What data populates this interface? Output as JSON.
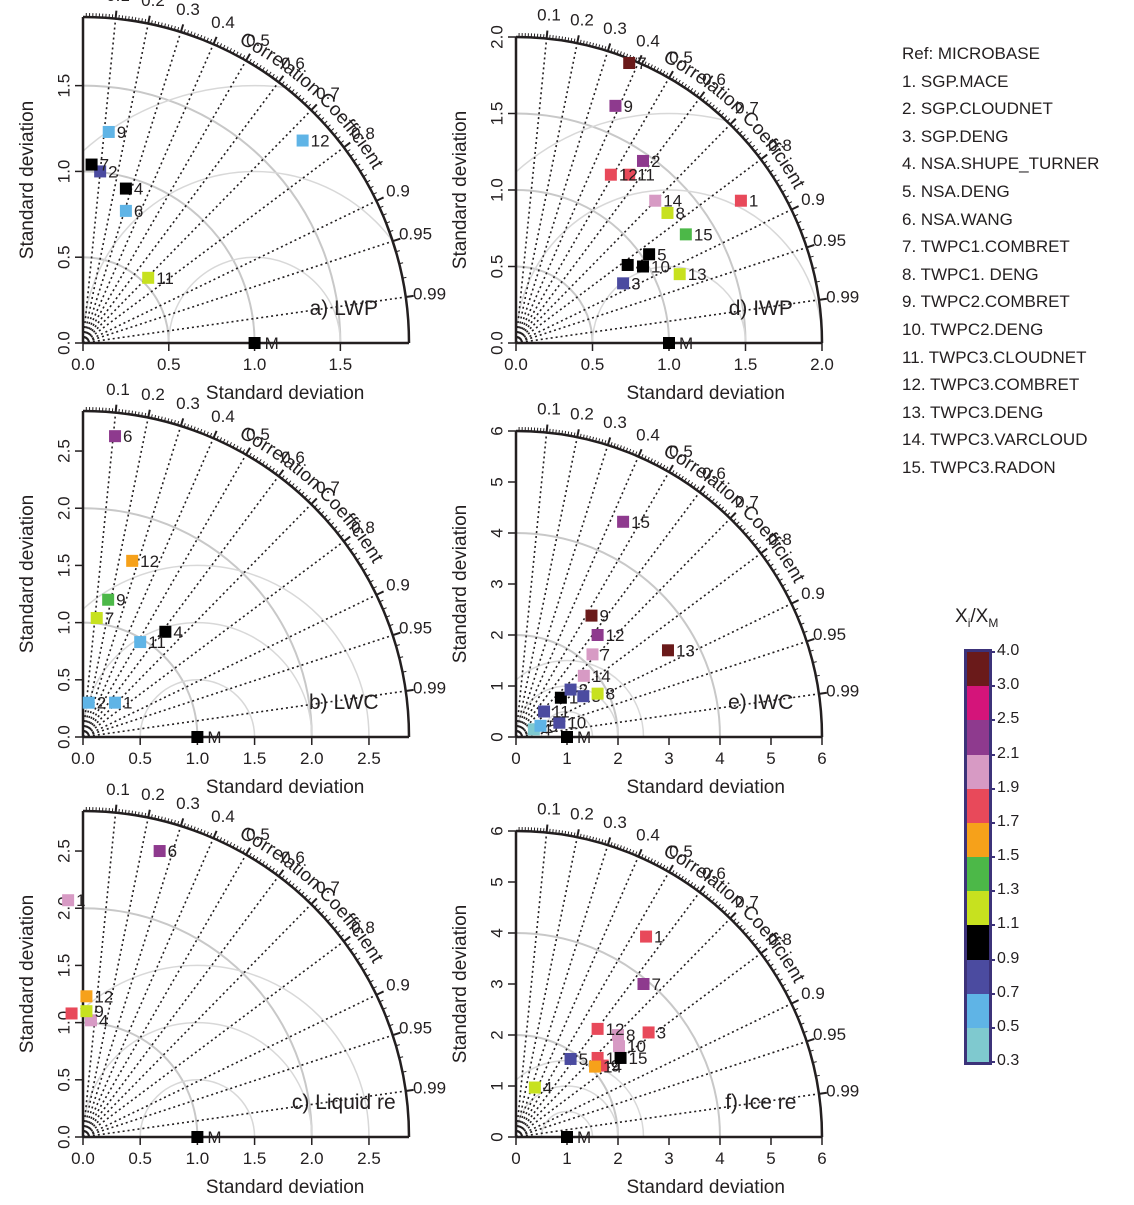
{
  "legend": {
    "title": "Ref: MICROBASE",
    "items": [
      "1.  SGP.MACE",
      "2.  SGP.CLOUDNET",
      "3.  SGP.DENG",
      "4.  NSA.SHUPE_TURNER",
      "5.  NSA.DENG",
      "6.  NSA.WANG",
      "7.  TWPC1.COMBRET",
      "8.  TWPC1. DENG",
      "9.  TWPC2.COMBRET",
      "10. TWPC2.DENG",
      "11. TWPC3.CLOUDNET",
      "12. TWPC3.COMBRET",
      "13. TWPC3.DENG",
      "14. TWPC3.VARCLOUD",
      "15. TWPC3.RADON"
    ]
  },
  "colorbar": {
    "title_main": "X",
    "title_sub1": "i",
    "title_mid": "/X",
    "title_sub2": "M",
    "labels": [
      "4.0",
      "3.0",
      "2.5",
      "2.1",
      "1.9",
      "1.7",
      "1.5",
      "1.3",
      "1.1",
      "0.9",
      "0.7",
      "0.5",
      "0.3"
    ],
    "colors": [
      "#6a1a1a",
      "#d4147a",
      "#8e3a8e",
      "#d79ac4",
      "#e8495a",
      "#f6a11a",
      "#4cb848",
      "#c7e11f",
      "#000000",
      "#4b4ba0",
      "#5fb4e6",
      "#7fc9cf"
    ]
  },
  "chart_data": [
    {
      "type": "scatter",
      "panel_label": "a) LWP",
      "xlabel": "Standard deviation",
      "ylabel": "Standard deviation",
      "corr_label": "Correlation Coefficient",
      "max_sd": 1.9,
      "sd_ticks": [
        0.0,
        0.5,
        1.0,
        1.5
      ],
      "ref_arcs": [
        0.5,
        1.0,
        1.5
      ],
      "outer_arc": true,
      "corr_ticks": [
        "0.1",
        "0.2",
        "0.3",
        "0.4",
        "0.5",
        "0.6",
        "0.7",
        "0.8",
        "0.9",
        "0.95",
        "0.99"
      ],
      "reference": {
        "label": "M",
        "sd": 1.0
      },
      "points": [
        {
          "label": "2",
          "x": 0.1,
          "y": 1.0,
          "color": "#4b4ba0"
        },
        {
          "label": "4",
          "x": 0.25,
          "y": 0.9,
          "color": "#000000"
        },
        {
          "label": "6",
          "x": 0.25,
          "y": 0.77,
          "color": "#5fb4e6"
        },
        {
          "label": "7",
          "x": 0.05,
          "y": 1.04,
          "color": "#000000"
        },
        {
          "label": "9",
          "x": 0.15,
          "y": 1.23,
          "color": "#5fb4e6"
        },
        {
          "label": "11",
          "x": 0.38,
          "y": 0.38,
          "color": "#c7e11f"
        },
        {
          "label": "12",
          "x": 1.28,
          "y": 1.18,
          "color": "#5fb4e6"
        }
      ]
    },
    {
      "type": "scatter",
      "panel_label": "d) IWP",
      "xlabel": "Standard deviation",
      "ylabel": "Standard deviation",
      "corr_label": "Correlation Coefficient",
      "max_sd": 2.0,
      "sd_ticks": [
        0.0,
        0.5,
        1.0,
        1.5,
        2.0
      ],
      "ref_arcs": [
        0.5,
        1.0,
        1.5,
        2.0
      ],
      "outer_arc": true,
      "corr_ticks": [
        "0.1",
        "0.2",
        "0.3",
        "0.4",
        "0.5",
        "0.6",
        "0.7",
        "0.8",
        "0.9",
        "0.95",
        "0.99"
      ],
      "reference": {
        "label": "M",
        "sd": 1.0
      },
      "points": [
        {
          "label": "1",
          "x": 1.47,
          "y": 0.93,
          "color": "#e8495a"
        },
        {
          "label": "2",
          "x": 0.83,
          "y": 1.19,
          "color": "#8e3a8e"
        },
        {
          "label": "3",
          "x": 0.7,
          "y": 0.39,
          "color": "#4b4ba0"
        },
        {
          "label": "4",
          "x": 0.73,
          "y": 0.51,
          "color": "#000000"
        },
        {
          "label": "5",
          "x": 0.87,
          "y": 0.58,
          "color": "#000000"
        },
        {
          "label": "7",
          "x": 0.74,
          "y": 1.83,
          "color": "#6a1a1a"
        },
        {
          "label": "8",
          "x": 0.99,
          "y": 0.85,
          "color": "#c7e11f"
        },
        {
          "label": "9",
          "x": 0.65,
          "y": 1.55,
          "color": "#8e3a8e"
        },
        {
          "label": "10",
          "x": 0.83,
          "y": 0.5,
          "color": "#000000"
        },
        {
          "label": "11",
          "x": 0.74,
          "y": 1.1,
          "color": "#e8495a"
        },
        {
          "label": "12",
          "x": 0.62,
          "y": 1.1,
          "color": "#e8495a"
        },
        {
          "label": "13",
          "x": 1.07,
          "y": 0.45,
          "color": "#c7e11f"
        },
        {
          "label": "14",
          "x": 0.91,
          "y": 0.93,
          "color": "#d79ac4"
        },
        {
          "label": "15",
          "x": 1.11,
          "y": 0.71,
          "color": "#4cb848"
        }
      ]
    },
    {
      "type": "scatter",
      "panel_label": "b) LWC",
      "xlabel": "Standard deviation",
      "ylabel": "Standard deviation",
      "corr_label": "Correlation Coefficient",
      "max_sd": 2.85,
      "sd_ticks": [
        0.0,
        0.5,
        1.0,
        1.5,
        2.0,
        2.5
      ],
      "ref_arcs": [
        1.0,
        2.0
      ],
      "outer_arc": true,
      "corr_ticks": [
        "0.1",
        "0.2",
        "0.3",
        "0.4",
        "0.5",
        "0.6",
        "0.7",
        "0.8",
        "0.9",
        "0.95",
        "0.99"
      ],
      "reference": {
        "label": "M",
        "sd": 1.0
      },
      "points": [
        {
          "label": "1",
          "x": 0.28,
          "y": 0.3,
          "color": "#5fb4e6"
        },
        {
          "label": "2",
          "x": 0.05,
          "y": 0.3,
          "color": "#5fb4e6"
        },
        {
          "label": "4",
          "x": 0.72,
          "y": 0.92,
          "color": "#000000"
        },
        {
          "label": "6",
          "x": 0.28,
          "y": 2.63,
          "color": "#8e3a8e"
        },
        {
          "label": "7",
          "x": 0.12,
          "y": 1.04,
          "color": "#c7e11f"
        },
        {
          "label": "9",
          "x": 0.22,
          "y": 1.2,
          "color": "#4cb848"
        },
        {
          "label": "11",
          "x": 0.5,
          "y": 0.83,
          "color": "#5fb4e6"
        },
        {
          "label": "12",
          "x": 0.43,
          "y": 1.54,
          "color": "#f6a11a"
        }
      ]
    },
    {
      "type": "scatter",
      "panel_label": "e) IWC",
      "xlabel": "Standard deviation",
      "ylabel": "Standard deviation",
      "corr_label": "Correlation Coefficient",
      "max_sd": 6.0,
      "sd_ticks": [
        0,
        1,
        2,
        3,
        4,
        5,
        6
      ],
      "ref_arcs": [
        2,
        4,
        6
      ],
      "outer_arc": true,
      "corr_ticks": [
        "0.1",
        "0.2",
        "0.3",
        "0.4",
        "0.5",
        "0.6",
        "0.7",
        "0.8",
        "0.9",
        "0.95",
        "0.99"
      ],
      "reference": {
        "label": "M",
        "sd": 1.0
      },
      "points": [
        {
          "label": "1",
          "x": 0.88,
          "y": 0.77,
          "color": "#000000"
        },
        {
          "label": "2",
          "x": 1.07,
          "y": 0.93,
          "color": "#4b4ba0"
        },
        {
          "label": "3",
          "x": 1.32,
          "y": 0.8,
          "color": "#4b4ba0"
        },
        {
          "label": "4",
          "x": 0.35,
          "y": 0.15,
          "color": "#7fc9cf"
        },
        {
          "label": "5",
          "x": 0.48,
          "y": 0.22,
          "color": "#5fb4e6"
        },
        {
          "label": "7",
          "x": 1.5,
          "y": 1.62,
          "color": "#d79ac4"
        },
        {
          "label": "8",
          "x": 1.6,
          "y": 0.85,
          "color": "#c7e11f"
        },
        {
          "label": "9",
          "x": 1.48,
          "y": 2.38,
          "color": "#6a1a1a"
        },
        {
          "label": "10",
          "x": 0.85,
          "y": 0.28,
          "color": "#4b4ba0"
        },
        {
          "label": "11",
          "x": 0.55,
          "y": 0.5,
          "color": "#4b4ba0"
        },
        {
          "label": "12",
          "x": 1.6,
          "y": 2.0,
          "color": "#8e3a8e"
        },
        {
          "label": "13",
          "x": 2.98,
          "y": 1.7,
          "color": "#6a1a1a"
        },
        {
          "label": "14",
          "x": 1.33,
          "y": 1.2,
          "color": "#d79ac4"
        },
        {
          "label": "15",
          "x": 2.1,
          "y": 4.22,
          "color": "#8e3a8e"
        }
      ]
    },
    {
      "type": "scatter",
      "panel_label": "c) Liquid re",
      "xlabel": "Standard deviation",
      "ylabel": "Standard deviation",
      "corr_label": "Correlation Coefficient",
      "max_sd": 2.85,
      "sd_ticks": [
        0.0,
        0.5,
        1.0,
        1.5,
        2.0,
        2.5
      ],
      "ref_arcs": [
        1.0,
        2.0
      ],
      "outer_arc": true,
      "corr_ticks": [
        "0.1",
        "0.2",
        "0.3",
        "0.4",
        "0.5",
        "0.6",
        "0.7",
        "0.8",
        "0.9",
        "0.95",
        "0.99"
      ],
      "reference": {
        "label": "M",
        "sd": 1.0
      },
      "points": [
        {
          "label": "1",
          "x": -0.13,
          "y": 2.07,
          "color": "#d79ac4"
        },
        {
          "label": "4",
          "x": 0.07,
          "y": 1.02,
          "color": "#d79ac4"
        },
        {
          "label": "6",
          "x": 0.67,
          "y": 2.5,
          "color": "#8e3a8e"
        },
        {
          "label": "7",
          "x": -0.1,
          "y": 1.08,
          "color": "#e8495a"
        },
        {
          "label": "9",
          "x": 0.03,
          "y": 1.1,
          "color": "#c7e11f"
        },
        {
          "label": "12",
          "x": 0.03,
          "y": 1.23,
          "color": "#f6a11a"
        }
      ]
    },
    {
      "type": "scatter",
      "panel_label": "f) Ice re",
      "xlabel": "Standard deviation",
      "ylabel": "Standard deviation",
      "corr_label": "Correlation Coefficient",
      "max_sd": 6.0,
      "sd_ticks": [
        0,
        1,
        2,
        3,
        4,
        5,
        6
      ],
      "ref_arcs": [
        2,
        4,
        6
      ],
      "outer_arc": true,
      "corr_ticks": [
        "0.1",
        "0.2",
        "0.3",
        "0.4",
        "0.5",
        "0.6",
        "0.7",
        "0.8",
        "0.9",
        "0.95",
        "0.99"
      ],
      "reference": {
        "label": "M",
        "sd": 1.0
      },
      "points": [
        {
          "label": "1",
          "x": 2.55,
          "y": 3.93,
          "color": "#e8495a"
        },
        {
          "label": "3",
          "x": 2.6,
          "y": 2.05,
          "color": "#e8495a"
        },
        {
          "label": "4",
          "x": 0.37,
          "y": 0.97,
          "color": "#c7e11f"
        },
        {
          "label": "5",
          "x": 1.07,
          "y": 1.53,
          "color": "#4b4ba0"
        },
        {
          "label": "7",
          "x": 2.5,
          "y": 3.0,
          "color": "#8e3a8e"
        },
        {
          "label": "8",
          "x": 2.0,
          "y": 2.0,
          "color": "#d79ac4"
        },
        {
          "label": "9",
          "x": 1.7,
          "y": 1.4,
          "color": "#e8495a"
        },
        {
          "label": "10",
          "x": 2.02,
          "y": 1.78,
          "color": "#d79ac4"
        },
        {
          "label": "12",
          "x": 1.6,
          "y": 2.12,
          "color": "#e8495a"
        },
        {
          "label": "13",
          "x": 1.6,
          "y": 1.55,
          "color": "#e8495a"
        },
        {
          "label": "14",
          "x": 1.55,
          "y": 1.38,
          "color": "#f6a11a"
        },
        {
          "label": "15",
          "x": 2.05,
          "y": 1.55,
          "color": "#000000"
        }
      ]
    }
  ]
}
